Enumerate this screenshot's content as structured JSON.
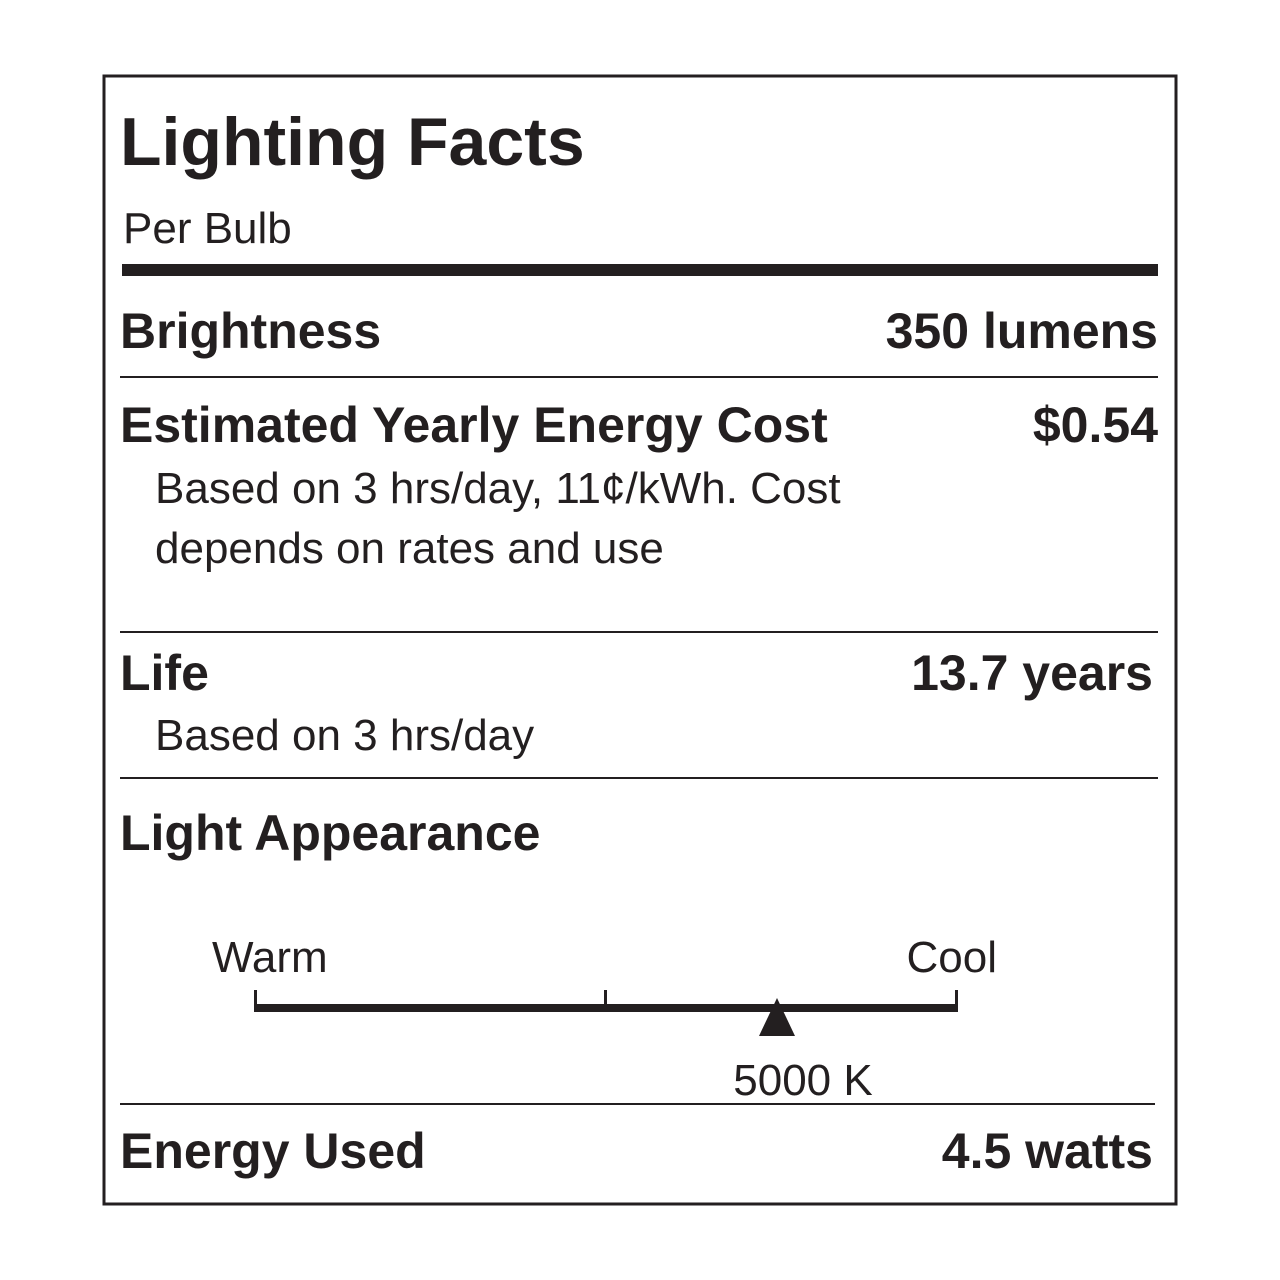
{
  "label": {
    "title": "Lighting Facts",
    "subtitle": "Per Bulb",
    "brightness": {
      "label": "Brightness",
      "value": "350 lumens"
    },
    "cost": {
      "label": "Estimated Yearly Energy Cost",
      "value": "$0.54",
      "note": [
        "Based on 3 hrs/day, 11¢/kWh. Cost",
        "depends on rates and use"
      ]
    },
    "life": {
      "label": "Life",
      "value": "13.7 years",
      "note": "Based on 3 hrs/day"
    },
    "appearance": {
      "label": "Light Appearance",
      "warm": "Warm",
      "cool": "Cool",
      "marker": "5000 K"
    },
    "energy": {
      "label": "Energy Used",
      "value": "4.5 watts"
    }
  }
}
